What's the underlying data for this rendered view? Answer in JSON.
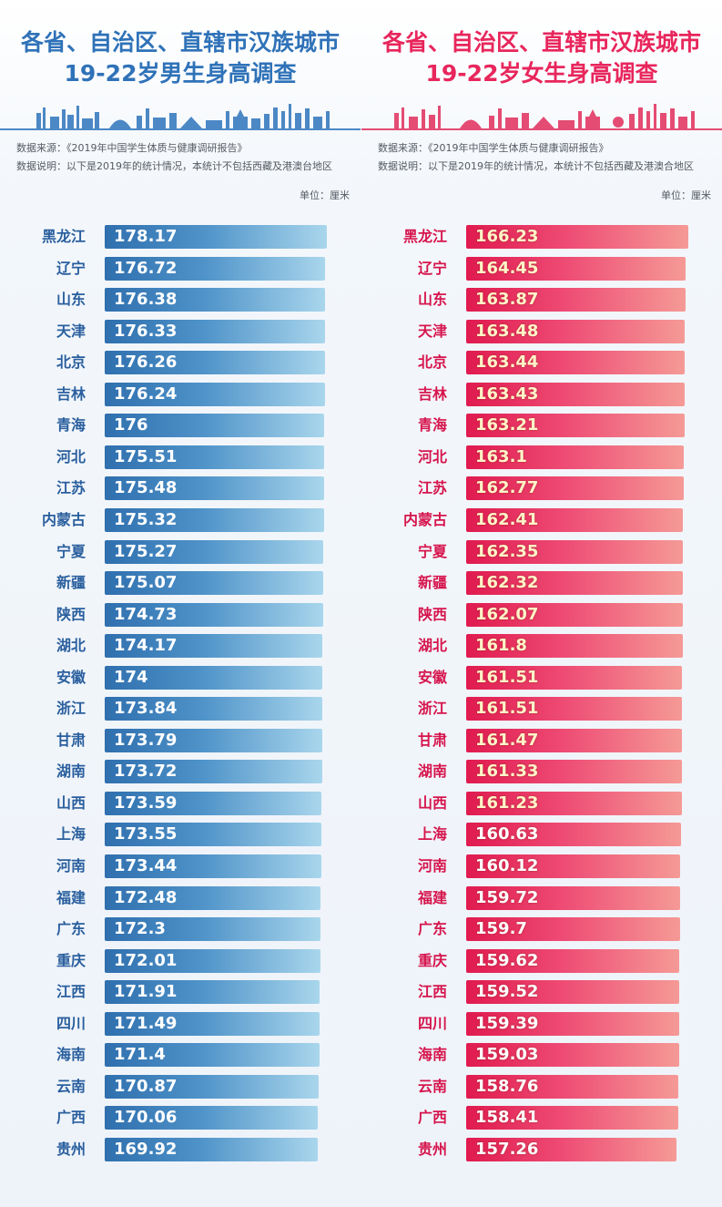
{
  "colors": {
    "male_accent": "#2f72b8",
    "female_accent": "#e8265c",
    "male_bar_start": "#2f6fae",
    "male_bar_end": "#a9d6ec",
    "female_bar_start": "#e01a4f",
    "female_bar_end": "#f59a96"
  },
  "left": {
    "title_line1": "各省、自治区、直辖市汉族城市",
    "title_line2": "19-22岁男生身高调查",
    "source": "数据来源：《2019年中国学生体质与健康调研报告》",
    "note": "数据说明：以下是2019年的统计情况，本统计不包括西藏及港澳台地区",
    "unit": "单位：厘米"
  },
  "right": {
    "title_line1": "各省、自治区、直辖市汉族城市",
    "title_line2": "19-22岁女生身高调查",
    "source": "数据来源：《2019年中国学生体质与健康调研报告》",
    "note": "数据说明：以下是2019年的统计情况，本统计不包括西藏及港澳合地区",
    "unit": "单位：厘米"
  },
  "chart_data": [
    {
      "type": "bar",
      "orientation": "horizontal",
      "title": "各省、自治区、直辖市汉族城市19-22岁男生身高调查",
      "unit": "厘米",
      "categories": [
        "黑龙江",
        "辽宁",
        "山东",
        "天津",
        "北京",
        "吉林",
        "青海",
        "河北",
        "江苏",
        "内蒙古",
        "宁夏",
        "新疆",
        "陕西",
        "湖北",
        "安徽",
        "浙江",
        "甘肃",
        "湖南",
        "山西",
        "上海",
        "河南",
        "福建",
        "广东",
        "重庆",
        "江西",
        "四川",
        "海南",
        "云南",
        "广西",
        "贵州"
      ],
      "values": [
        "178.17",
        "176.72",
        "176.38",
        "176.33",
        "176.26",
        "176.24",
        "176",
        "175.51",
        "175.48",
        "175.32",
        "175.27",
        "175.07",
        "174.73",
        "174.17",
        "174",
        "173.84",
        "173.79",
        "173.72",
        "173.59",
        "173.55",
        "173.44",
        "172.48",
        "172.3",
        "172.01",
        "171.91",
        "171.49",
        "171.4",
        "170.87",
        "170.06",
        "169.92"
      ]
    },
    {
      "type": "bar",
      "orientation": "horizontal",
      "title": "各省、自治区、直辖市汉族城市19-22岁女生身高调查",
      "unit": "厘米",
      "categories": [
        "黑龙江",
        "辽宁",
        "山东",
        "天津",
        "北京",
        "吉林",
        "青海",
        "河北",
        "江苏",
        "内蒙古",
        "宁夏",
        "新疆",
        "陕西",
        "湖北",
        "安徽",
        "浙江",
        "甘肃",
        "湖南",
        "山西",
        "上海",
        "河南",
        "福建",
        "广东",
        "重庆",
        "江西",
        "四川",
        "海南",
        "云南",
        "广西",
        "贵州"
      ],
      "values": [
        "166.23",
        "164.45",
        "163.87",
        "163.48",
        "163.44",
        "163.43",
        "163.21",
        "163.1",
        "162.77",
        "162.41",
        "162.35",
        "162.32",
        "162.07",
        "161.8",
        "161.51",
        "161.51",
        "161.47",
        "161.33",
        "161.23",
        "160.63",
        "160.12",
        "159.72",
        "159.7",
        "159.62",
        "159.52",
        "159.39",
        "159.03",
        "158.76",
        "158.41",
        "157.26"
      ]
    }
  ]
}
